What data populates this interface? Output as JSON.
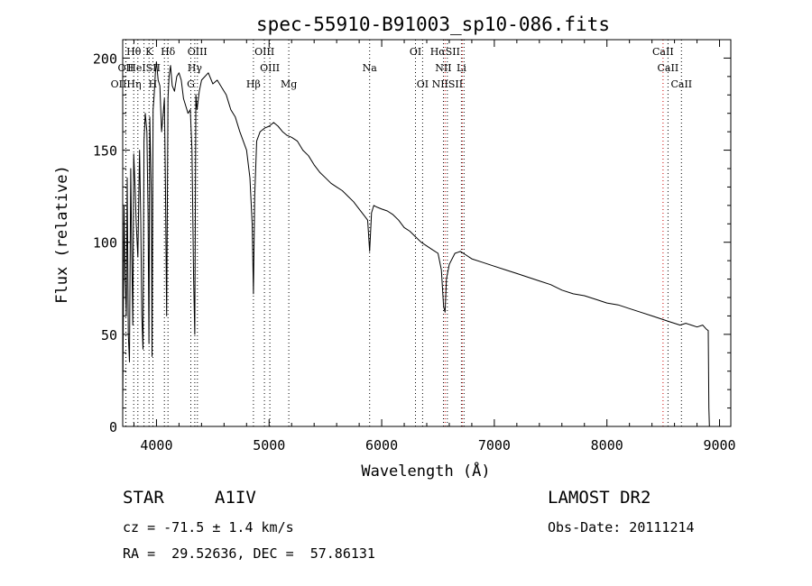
{
  "chart_data": {
    "type": "line",
    "title": "spec-55910-B91003_sp10-086.fits",
    "xlabel": "Wavelength (Å)",
    "ylabel": "Flux (relative)",
    "xlim": [
      3700,
      9100
    ],
    "ylim": [
      0,
      210
    ],
    "xticks": [
      4000,
      5000,
      6000,
      7000,
      8000,
      9000
    ],
    "yticks": [
      0,
      50,
      100,
      150,
      200
    ],
    "grid": false,
    "series": [
      {
        "x": [
          3700,
          3712,
          3722,
          3732,
          3740,
          3750,
          3760,
          3771,
          3780,
          3790,
          3798,
          3810,
          3820,
          3835,
          3850,
          3860,
          3870,
          3880,
          3889,
          3900,
          3915,
          3925,
          3933,
          3940,
          3955,
          3960,
          3970,
          3980,
          3990,
          4000,
          4015,
          4030,
          4045,
          4060,
          4070,
          4080,
          4090,
          4102,
          4112,
          4125,
          4140,
          4160,
          4180,
          4200,
          4220,
          4240,
          4260,
          4280,
          4300,
          4315,
          4330,
          4340,
          4350,
          4360,
          4380,
          4400,
          4430,
          4460,
          4500,
          4540,
          4580,
          4620,
          4660,
          4700,
          4740,
          4770,
          4800,
          4830,
          4850,
          4861,
          4872,
          4890,
          4920,
          4960,
          5000,
          5040,
          5080,
          5120,
          5160,
          5200,
          5250,
          5300,
          5350,
          5400,
          5450,
          5500,
          5550,
          5600,
          5650,
          5700,
          5750,
          5800,
          5850,
          5875,
          5893,
          5910,
          5930,
          5960,
          6000,
          6050,
          6100,
          6150,
          6200,
          6250,
          6300,
          6350,
          6400,
          6450,
          6500,
          6530,
          6550,
          6563,
          6575,
          6600,
          6650,
          6700,
          6750,
          6800,
          6900,
          7000,
          7100,
          7200,
          7300,
          7400,
          7500,
          7600,
          7700,
          7800,
          7900,
          8000,
          8100,
          8200,
          8300,
          8400,
          8500,
          8550,
          8600,
          8650,
          8700,
          8750,
          8800,
          8850,
          8880,
          8900,
          8905,
          8910
        ],
        "values": [
          10,
          120,
          80,
          60,
          135,
          50,
          35,
          140,
          95,
          55,
          148,
          130,
          110,
          92,
          150,
          112,
          60,
          42,
          155,
          170,
          160,
          115,
          45,
          168,
          125,
          38,
          172,
          180,
          192,
          198,
          188,
          185,
          160,
          170,
          178,
          130,
          60,
          178,
          190,
          196,
          185,
          182,
          190,
          192,
          188,
          178,
          174,
          170,
          172,
          150,
          80,
          50,
          180,
          172,
          182,
          188,
          190,
          192,
          186,
          188,
          184,
          180,
          172,
          168,
          160,
          155,
          150,
          135,
          110,
          72,
          125,
          155,
          160,
          162,
          163,
          165,
          163,
          160,
          158,
          157,
          155,
          150,
          147,
          142,
          138,
          135,
          132,
          130,
          128,
          125,
          122,
          118,
          114,
          112,
          95,
          116,
          120,
          119,
          118,
          117,
          115,
          112,
          108,
          106,
          103,
          100,
          98,
          96,
          94,
          85,
          65,
          62,
          80,
          88,
          94,
          95,
          93,
          91,
          89,
          87,
          85,
          83,
          81,
          79,
          77,
          74,
          72,
          71,
          69,
          67,
          66,
          64,
          62,
          60,
          58,
          57,
          56,
          55,
          56,
          55,
          54,
          55,
          53,
          52,
          10,
          0
        ]
      }
    ],
    "lines": [
      {
        "name": "Hθ",
        "x": 3798,
        "color": "#000000"
      },
      {
        "name": "OII",
        "x": 3727,
        "color": "#000000"
      },
      {
        "name": "OII",
        "x": 3729,
        "color": "#000000"
      },
      {
        "name": "Hη",
        "x": 3835,
        "color": "#000000"
      },
      {
        "name": "HeI",
        "x": 3889,
        "color": "#000000"
      },
      {
        "name": "K",
        "x": 3934,
        "color": "#000000"
      },
      {
        "name": "H",
        "x": 3968,
        "color": "#000000"
      },
      {
        "name": "SII",
        "x": 4070,
        "color": "#000000"
      },
      {
        "name": "Hδ",
        "x": 4102,
        "color": "#000000"
      },
      {
        "name": "G",
        "x": 4305,
        "color": "#000000"
      },
      {
        "name": "Hγ",
        "x": 4340,
        "color": "#000000"
      },
      {
        "name": "OIII",
        "x": 4363,
        "color": "#000000"
      },
      {
        "name": "Hβ",
        "x": 4861,
        "color": "#000000"
      },
      {
        "name": "OIII",
        "x": 4959,
        "color": "#000000"
      },
      {
        "name": "OIII",
        "x": 5007,
        "color": "#000000"
      },
      {
        "name": "Mg",
        "x": 5175,
        "color": "#000000"
      },
      {
        "name": "Na",
        "x": 5893,
        "color": "#000000"
      },
      {
        "name": "OI",
        "x": 6300,
        "color": "#000000"
      },
      {
        "name": "OI",
        "x": 6363,
        "color": "#000000"
      },
      {
        "name": "NII",
        "x": 6548,
        "color": "#000000"
      },
      {
        "name": "Hα",
        "x": 6563,
        "color": "#cc0000"
      },
      {
        "name": "NII",
        "x": 6583,
        "color": "#000000"
      },
      {
        "name": "Li",
        "x": 6708,
        "color": "#000000"
      },
      {
        "name": "SII",
        "x": 6716,
        "color": "#cc0000"
      },
      {
        "name": "SII",
        "x": 6731,
        "color": "#000000"
      },
      {
        "name": "CaII",
        "x": 8498,
        "color": "#cc0000"
      },
      {
        "name": "CaII",
        "x": 8542,
        "color": "#000000"
      },
      {
        "name": "CaII",
        "x": 8662,
        "color": "#000000"
      }
    ],
    "line_labels": [
      {
        "text": "Hθ",
        "x": 3798,
        "row": 1
      },
      {
        "text": "K",
        "x": 3934,
        "row": 1
      },
      {
        "text": "Hδ",
        "x": 4102,
        "row": 1
      },
      {
        "text": "OIII",
        "x": 4363,
        "row": 1
      },
      {
        "text": "OIII",
        "x": 4959,
        "row": 1
      },
      {
        "text": "OI",
        "x": 6300,
        "row": 1
      },
      {
        "text": "HαSII",
        "x": 6563,
        "row": 1
      },
      {
        "text": "CaII",
        "x": 8498,
        "row": 1
      },
      {
        "text": "OII",
        "x": 3727,
        "row": 2
      },
      {
        "text": "HeISII",
        "x": 3889,
        "row": 2
      },
      {
        "text": "Hγ",
        "x": 4340,
        "row": 2
      },
      {
        "text": "OIII",
        "x": 5007,
        "row": 2
      },
      {
        "text": "Na",
        "x": 5893,
        "row": 2
      },
      {
        "text": "NII",
        "x": 6548,
        "row": 2
      },
      {
        "text": "Li",
        "x": 6708,
        "row": 2
      },
      {
        "text": "CaII",
        "x": 8542,
        "row": 2
      },
      {
        "text": "OIIHη",
        "x": 3729,
        "row": 3
      },
      {
        "text": "H",
        "x": 3968,
        "row": 3
      },
      {
        "text": "G",
        "x": 4305,
        "row": 3
      },
      {
        "text": "Hβ",
        "x": 4861,
        "row": 3
      },
      {
        "text": "Mg",
        "x": 5175,
        "row": 3
      },
      {
        "text": "OI",
        "x": 6363,
        "row": 3
      },
      {
        "text": "NIISII",
        "x": 6583,
        "row": 3
      },
      {
        "text": "CaII",
        "x": 8662,
        "row": 3
      }
    ]
  },
  "info": {
    "object_class": "STAR",
    "subclass": "A1IV",
    "survey": "LAMOST DR2",
    "cz": "cz = -71.5 ± 1.4 km/s",
    "obs_date": "Obs-Date: 20111214",
    "coords": "RA =  29.52636, DEC =  57.86131"
  }
}
